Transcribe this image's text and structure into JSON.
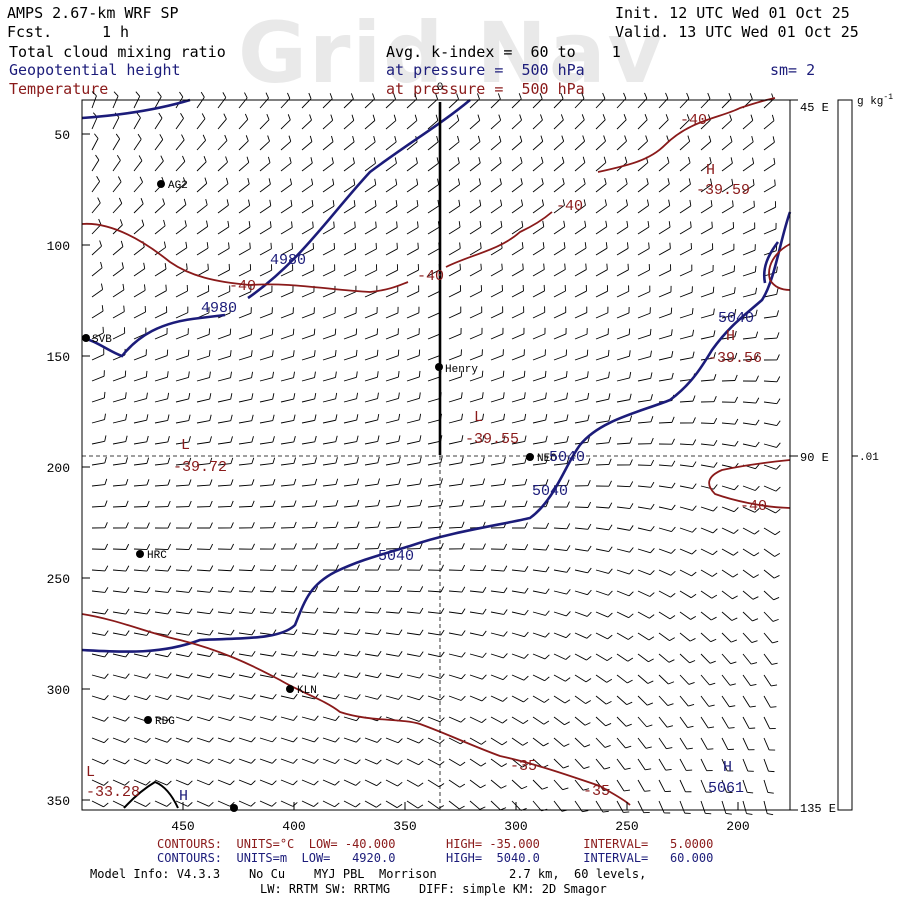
{
  "header": {
    "model": "AMPS 2.67-km WRF SP",
    "fcst_label": "Fcst.",
    "fcst_value": "1 h",
    "init": "Init. 12 UTC Wed 01 Oct 25",
    "valid": "Valid. 13 UTC Wed 01 Oct 25",
    "field1": "Total cloud mixing ratio",
    "field2": "Geopotential height",
    "field3": "Temperature",
    "avg_k": "Avg. k-index =  60 to    1",
    "pressure1": "at pressure =  500 hPa",
    "pressure2": "at pressure =  500 hPa",
    "sm": "sm= 2",
    "watermark": "Grid Nav",
    "top_axis": "0"
  },
  "axes": {
    "y_ticks": [
      "50",
      "100",
      "150",
      "200",
      "250",
      "300",
      "350"
    ],
    "x_ticks": [
      "450",
      "400",
      "350",
      "300",
      "250",
      "200"
    ],
    "lon_labels": [
      "45 E",
      "90 E",
      "135 E"
    ]
  },
  "colorbar": {
    "units": "g kg",
    "units_exp": "-1",
    "tick": ".01"
  },
  "stations": [
    {
      "name": "AG2"
    },
    {
      "name": "SVB"
    },
    {
      "name": "Henry"
    },
    {
      "name": "NEO"
    },
    {
      "name": "HRC"
    },
    {
      "name": "KLN"
    },
    {
      "name": "RDG"
    }
  ],
  "height_labels": [
    "4980",
    "4980",
    "5040",
    "5040",
    "5040",
    "5040"
  ],
  "temp_labels": [
    "-40",
    "-40",
    "-40",
    "-40",
    "-40",
    "-35",
    "-35"
  ],
  "extrema": [
    {
      "letter": "H",
      "value": "-39.59",
      "kind": "temp"
    },
    {
      "letter": "H",
      "value": "-39.56",
      "kind": "temp"
    },
    {
      "letter": "L",
      "value": "-39.55",
      "kind": "temp"
    },
    {
      "letter": "L",
      "value": "-39.72",
      "kind": "temp"
    },
    {
      "letter": "L",
      "value": "-33.28",
      "kind": "temp"
    },
    {
      "letter": "H",
      "value": "5061",
      "kind": "height"
    },
    {
      "letter": "H",
      "value": "",
      "kind": "height"
    }
  ],
  "footer": {
    "line1": "CONTOURS:  UNITS=°C  LOW= -40.000       HIGH= -35.000      INTERVAL=   5.0000",
    "line2": "CONTOURS:  UNITS=m  LOW=   4920.0       HIGH=  5040.0      INTERVAL=   60.000",
    "line3": "Model Info: V4.3.3    No Cu    MYJ PBL  Morrison          2.7 km,  60 levels,",
    "line4": "LW: RRTM SW: RRTMG    DIFF: simple KM: 2D Smagor"
  },
  "colors": {
    "height": "#1c1c7a",
    "temp": "#8a1a1a",
    "wind": "#000000"
  }
}
